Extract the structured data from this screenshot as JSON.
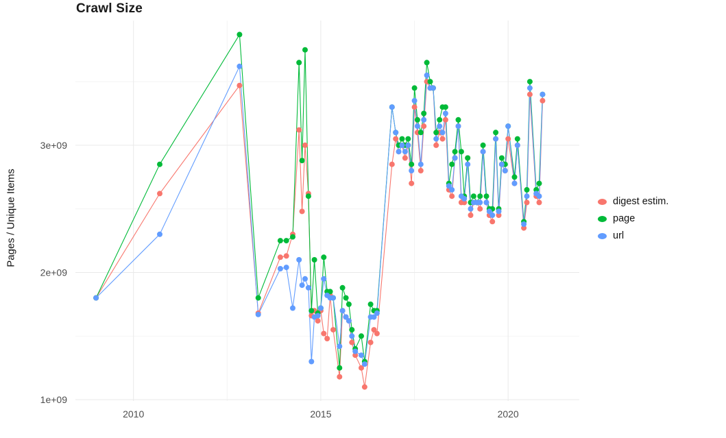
{
  "chart": {
    "title": "Crawl Size",
    "ylabel": "Pages / Unique Items"
  },
  "chart_data": {
    "type": "line",
    "title": "Crawl Size",
    "xlabel": "",
    "ylabel": "Pages / Unique Items",
    "unit": "1e9",
    "grid": true,
    "legend_position": "right",
    "xlim": [
      2008.45,
      2021.9
    ],
    "ylim": [
      0.99,
      3.98
    ],
    "x_ticks": {
      "values": [
        2010,
        2015,
        2020
      ],
      "labels": [
        "2010",
        "2015",
        "2020"
      ]
    },
    "y_ticks": {
      "values": [
        1,
        2,
        3
      ],
      "labels": [
        "1e+09",
        "2e+09",
        "3e+09"
      ]
    },
    "x_minor": [
      2012.5,
      2017.5
    ],
    "y_minor": [
      1.5,
      2.5,
      3.5
    ],
    "x": [
      2009.0,
      2010.7,
      2012.83,
      2013.33,
      2013.92,
      2014.08,
      2014.25,
      2014.42,
      2014.5,
      2014.58,
      2014.67,
      2014.75,
      2014.83,
      2014.92,
      2015.0,
      2015.08,
      2015.17,
      2015.25,
      2015.33,
      2015.5,
      2015.58,
      2015.67,
      2015.75,
      2015.83,
      2015.92,
      2016.08,
      2016.17,
      2016.33,
      2016.42,
      2016.5,
      2016.9,
      2017.0,
      2017.08,
      2017.17,
      2017.25,
      2017.33,
      2017.42,
      2017.5,
      2017.58,
      2017.67,
      2017.75,
      2017.83,
      2017.92,
      2018.0,
      2018.08,
      2018.17,
      2018.25,
      2018.33,
      2018.42,
      2018.5,
      2018.58,
      2018.67,
      2018.75,
      2018.83,
      2018.92,
      2019.0,
      2019.08,
      2019.17,
      2019.25,
      2019.33,
      2019.42,
      2019.5,
      2019.58,
      2019.67,
      2019.75,
      2019.83,
      2019.92,
      2020.0,
      2020.17,
      2020.25,
      2020.42,
      2020.5,
      2020.58,
      2020.75,
      2020.83,
      2020.92
    ],
    "series": [
      {
        "name": "digest estim.",
        "color": "#F8766D",
        "values": [
          1.8,
          2.62,
          3.47,
          1.68,
          2.12,
          2.13,
          2.3,
          3.12,
          2.48,
          3.0,
          2.62,
          1.66,
          1.7,
          1.62,
          1.7,
          1.52,
          1.48,
          1.82,
          1.55,
          1.18,
          1.7,
          1.65,
          1.62,
          1.45,
          1.35,
          1.25,
          1.1,
          1.45,
          1.55,
          1.52,
          2.85,
          3.05,
          2.95,
          3.0,
          2.9,
          3.0,
          2.7,
          3.3,
          3.1,
          2.8,
          3.15,
          3.5,
          3.45,
          3.45,
          3.0,
          3.1,
          3.05,
          3.2,
          2.65,
          2.6,
          2.9,
          3.15,
          2.55,
          2.55,
          2.9,
          2.45,
          2.55,
          2.55,
          2.5,
          2.95,
          2.55,
          2.45,
          2.4,
          3.05,
          2.45,
          2.85,
          2.8,
          3.05,
          2.7,
          3.0,
          2.35,
          2.55,
          3.4,
          2.6,
          2.55,
          3.35
        ]
      },
      {
        "name": "page",
        "color": "#00BA38",
        "values": [
          1.8,
          2.85,
          3.87,
          1.8,
          2.25,
          2.25,
          2.28,
          3.65,
          2.88,
          3.75,
          2.6,
          1.7,
          2.1,
          1.68,
          1.72,
          2.12,
          1.85,
          1.85,
          1.8,
          1.25,
          1.88,
          1.8,
          1.75,
          1.55,
          1.4,
          1.5,
          1.3,
          1.75,
          1.7,
          1.7,
          3.3,
          3.1,
          3.0,
          3.05,
          3.0,
          3.05,
          2.85,
          3.45,
          3.2,
          3.1,
          3.25,
          3.65,
          3.5,
          3.45,
          3.1,
          3.2,
          3.3,
          3.3,
          2.7,
          2.85,
          2.95,
          3.2,
          2.95,
          2.6,
          2.9,
          2.55,
          2.6,
          2.55,
          2.6,
          3.0,
          2.6,
          2.5,
          2.5,
          3.1,
          2.5,
          2.9,
          2.85,
          3.15,
          2.75,
          3.05,
          2.4,
          2.65,
          3.5,
          2.65,
          2.7,
          3.4
        ]
      },
      {
        "name": "url",
        "color": "#619CFF",
        "values": [
          1.8,
          2.3,
          3.62,
          1.67,
          2.03,
          2.04,
          1.72,
          2.1,
          1.9,
          1.95,
          1.88,
          1.3,
          1.65,
          1.66,
          1.72,
          1.95,
          1.82,
          1.8,
          1.8,
          1.42,
          1.7,
          1.65,
          1.62,
          1.5,
          1.38,
          1.35,
          1.28,
          1.65,
          1.65,
          1.68,
          3.3,
          3.1,
          2.95,
          3.0,
          2.95,
          3.0,
          2.8,
          3.35,
          3.15,
          2.85,
          3.2,
          3.55,
          3.45,
          3.45,
          3.05,
          3.15,
          3.1,
          3.25,
          2.68,
          2.65,
          2.9,
          3.15,
          2.6,
          2.58,
          2.85,
          2.5,
          2.55,
          2.55,
          2.55,
          2.95,
          2.55,
          2.48,
          2.45,
          3.05,
          2.48,
          2.85,
          2.8,
          3.15,
          2.7,
          3.0,
          2.38,
          2.6,
          3.45,
          2.62,
          2.6,
          3.4
        ]
      }
    ]
  }
}
